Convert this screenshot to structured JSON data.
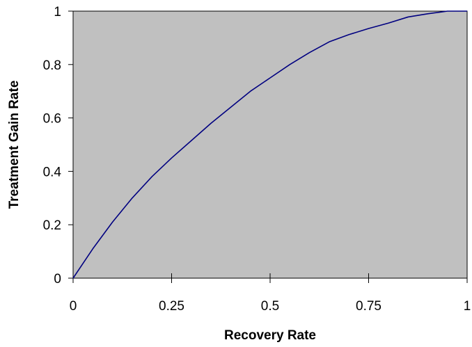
{
  "chart_data": {
    "type": "line",
    "title": "",
    "xlabel": "Recovery Rate",
    "ylabel": "Treatment Gain Rate",
    "xlim": [
      0,
      1
    ],
    "ylim": [
      0,
      1
    ],
    "grid": false,
    "legend": "none",
    "x_ticks": [
      0,
      0.25,
      0.5,
      0.75,
      1
    ],
    "x_tick_labels": [
      "0",
      "0.25",
      "0.5",
      "0.75",
      "1"
    ],
    "y_ticks": [
      0,
      0.2,
      0.4,
      0.6,
      0.8,
      1
    ],
    "y_tick_labels": [
      "0",
      "0.2",
      "0.4",
      "0.6",
      "0.8",
      "1"
    ],
    "plot_background": "#c0c0c0",
    "line_color": "#000080",
    "series": [
      {
        "x": [
          0,
          0.05,
          0.1,
          0.15,
          0.2,
          0.25,
          0.3,
          0.35,
          0.4,
          0.45,
          0.5,
          0.55,
          0.6,
          0.65,
          0.7,
          0.75,
          0.8,
          0.85,
          0.9,
          0.95,
          1.0
        ],
        "y": [
          0,
          0.11,
          0.21,
          0.3,
          0.38,
          0.45,
          0.515,
          0.58,
          0.64,
          0.7,
          0.75,
          0.8,
          0.845,
          0.885,
          0.912,
          0.935,
          0.955,
          0.978,
          0.99,
          1.0,
          1.0
        ]
      }
    ]
  }
}
